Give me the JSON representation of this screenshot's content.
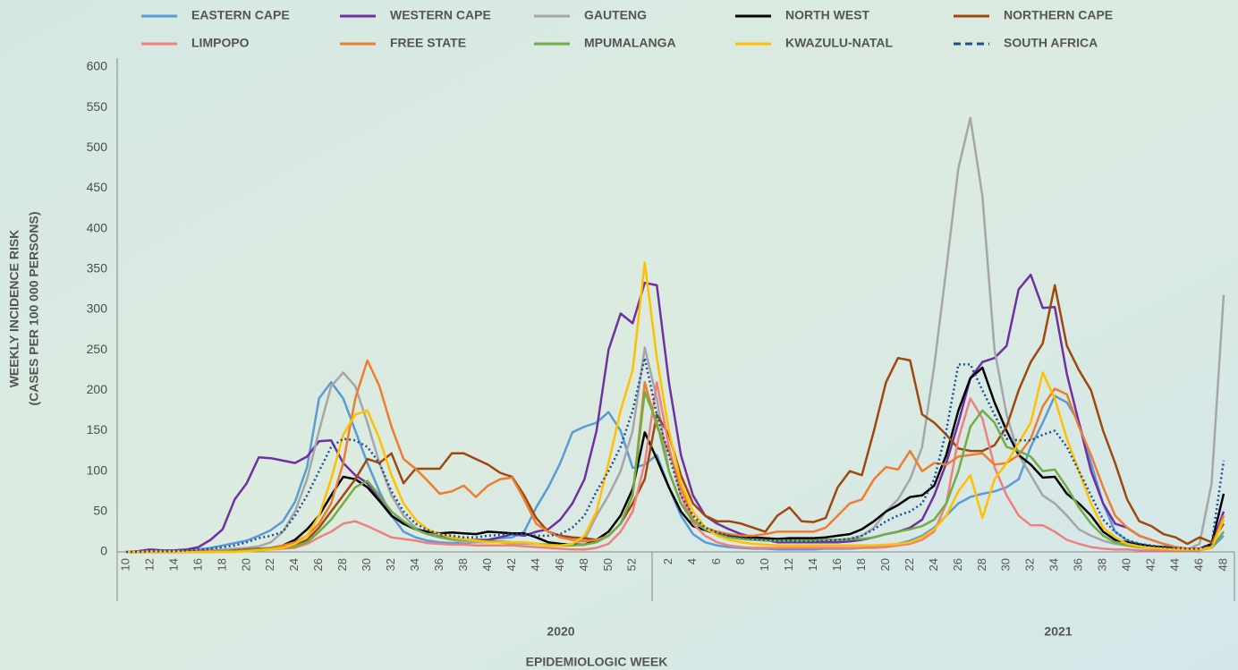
{
  "chart_data": {
    "type": "line",
    "y_label": [
      "WEEKLY INCIDENCE RISK",
      "(CASES PER 100 000 PERSONS)"
    ],
    "x_label": "EPIDEMIOLOGIC WEEK",
    "year_labels": [
      "2020",
      "2021"
    ],
    "categories": [
      "10",
      null,
      "12",
      null,
      "14",
      null,
      "16",
      null,
      "18",
      null,
      "20",
      null,
      "22",
      null,
      "24",
      null,
      "26",
      null,
      "28",
      null,
      "30",
      null,
      "32",
      null,
      "34",
      null,
      "36",
      null,
      "38",
      null,
      "40",
      null,
      "42",
      null,
      "44",
      null,
      "46",
      null,
      "48",
      null,
      "50",
      null,
      "52",
      null,
      null,
      "2",
      null,
      "4",
      null,
      "6",
      null,
      "8",
      null,
      "10",
      null,
      "12",
      null,
      "14",
      null,
      "16",
      null,
      "18",
      null,
      "20",
      null,
      "22",
      null,
      "24",
      null,
      "26",
      null,
      "28",
      null,
      "30",
      null,
      "32",
      null,
      "34",
      null,
      "36",
      null,
      "38",
      null,
      "40",
      null,
      "42",
      null,
      "44",
      null,
      "46",
      null,
      "48"
    ],
    "ylim": [
      0,
      600
    ],
    "yticks": [
      0,
      50,
      100,
      150,
      200,
      250,
      300,
      350,
      400,
      450,
      500,
      550,
      600
    ],
    "grid": false,
    "series": [
      {
        "name": "EASTERN CAPE",
        "color": "#5b9bd5",
        "values": [
          0,
          0,
          2,
          1,
          1,
          2,
          3,
          5,
          8,
          11,
          14,
          20,
          27,
          38,
          62,
          105,
          190,
          210,
          190,
          150,
          110,
          75,
          45,
          25,
          18,
          14,
          12,
          11,
          11,
          12,
          15,
          17,
          18,
          25,
          55,
          80,
          110,
          148,
          155,
          160,
          173,
          150,
          104,
          108,
          120,
          80,
          45,
          22,
          12,
          8,
          6,
          5,
          4,
          4,
          3,
          3,
          3,
          3,
          4,
          4,
          4,
          5,
          6,
          8,
          10,
          14,
          20,
          30,
          45,
          60,
          68,
          72,
          75,
          80,
          90,
          130,
          160,
          193,
          185,
          160,
          110,
          60,
          25,
          14,
          10,
          7,
          5,
          4,
          3,
          3,
          5,
          20
        ]
      },
      {
        "name": "WESTERN CAPE",
        "color": "#7030a0",
        "values": [
          0,
          1,
          3,
          2,
          2,
          3,
          6,
          15,
          28,
          65,
          85,
          117,
          116,
          113,
          110,
          118,
          137,
          138,
          110,
          95,
          85,
          65,
          45,
          35,
          28,
          22,
          19,
          18,
          15,
          15,
          15,
          18,
          22,
          20,
          25,
          28,
          40,
          60,
          90,
          150,
          250,
          295,
          283,
          333,
          330,
          210,
          120,
          70,
          45,
          35,
          28,
          22,
          18,
          15,
          12,
          12,
          12,
          12,
          12,
          12,
          13,
          15,
          18,
          22,
          25,
          30,
          40,
          70,
          110,
          160,
          215,
          235,
          240,
          255,
          325,
          343,
          302,
          303,
          220,
          160,
          100,
          60,
          35,
          30,
          20,
          15,
          10,
          6,
          4,
          3,
          8,
          50
        ]
      },
      {
        "name": "GAUTENG",
        "color": "#a6a6a6",
        "values": [
          0,
          0,
          1,
          1,
          1,
          1,
          2,
          2,
          3,
          4,
          5,
          7,
          12,
          25,
          50,
          90,
          150,
          205,
          222,
          205,
          160,
          110,
          70,
          45,
          30,
          22,
          18,
          15,
          12,
          12,
          12,
          12,
          10,
          10,
          10,
          9,
          8,
          10,
          15,
          45,
          70,
          100,
          150,
          253,
          190,
          100,
          60,
          40,
          30,
          25,
          20,
          18,
          16,
          15,
          15,
          15,
          15,
          15,
          15,
          15,
          16,
          20,
          30,
          50,
          65,
          90,
          130,
          230,
          350,
          475,
          537,
          440,
          250,
          170,
          120,
          95,
          70,
          60,
          45,
          28,
          20,
          14,
          10,
          8,
          6,
          5,
          4,
          3,
          3,
          10,
          85,
          318
        ]
      },
      {
        "name": "NORTH WEST",
        "color": "#000000",
        "values": [
          0,
          0,
          0,
          0,
          0,
          0,
          1,
          1,
          1,
          1,
          2,
          3,
          5,
          8,
          15,
          28,
          45,
          70,
          93,
          90,
          80,
          63,
          45,
          35,
          28,
          25,
          23,
          24,
          23,
          22,
          25,
          24,
          23,
          23,
          18,
          12,
          10,
          9,
          9,
          15,
          25,
          45,
          78,
          148,
          115,
          80,
          50,
          32,
          27,
          22,
          20,
          18,
          18,
          17,
          16,
          17,
          17,
          17,
          18,
          20,
          22,
          28,
          38,
          50,
          58,
          68,
          70,
          82,
          120,
          175,
          215,
          228,
          185,
          150,
          120,
          108,
          92,
          93,
          72,
          60,
          45,
          25,
          15,
          12,
          9,
          7,
          6,
          5,
          4,
          4,
          10,
          72
        ]
      },
      {
        "name": "NORTHERN CAPE",
        "color": "#9e480e",
        "values": [
          0,
          0,
          0,
          0,
          0,
          1,
          1,
          1,
          1,
          2,
          3,
          4,
          5,
          6,
          8,
          15,
          30,
          50,
          70,
          90,
          115,
          110,
          122,
          85,
          103,
          103,
          103,
          122,
          122,
          115,
          108,
          98,
          93,
          70,
          42,
          25,
          20,
          18,
          17,
          15,
          20,
          35,
          60,
          90,
          170,
          145,
          95,
          60,
          45,
          38,
          38,
          35,
          30,
          25,
          45,
          55,
          38,
          37,
          42,
          80,
          100,
          95,
          150,
          210,
          240,
          237,
          170,
          160,
          145,
          128,
          125,
          125,
          132,
          155,
          200,
          235,
          258,
          330,
          255,
          225,
          200,
          150,
          110,
          65,
          38,
          32,
          22,
          18,
          10,
          18,
          12,
          35
        ]
      },
      {
        "name": "LIMPOPO",
        "color": "#f08080",
        "values": [
          0,
          0,
          0,
          0,
          0,
          0,
          0,
          0,
          1,
          1,
          1,
          2,
          3,
          4,
          5,
          10,
          18,
          25,
          35,
          38,
          32,
          25,
          18,
          16,
          14,
          11,
          10,
          9,
          9,
          8,
          8,
          8,
          8,
          7,
          6,
          5,
          4,
          3,
          3,
          5,
          10,
          25,
          50,
          110,
          210,
          130,
          70,
          35,
          20,
          12,
          8,
          6,
          5,
          5,
          5,
          5,
          5,
          5,
          5,
          5,
          5,
          5,
          5,
          6,
          8,
          10,
          15,
          25,
          60,
          140,
          190,
          165,
          105,
          70,
          45,
          33,
          33,
          25,
          15,
          10,
          6,
          4,
          3,
          3,
          2,
          2,
          2,
          2,
          2,
          2,
          5,
          40
        ]
      },
      {
        "name": "FREE STATE",
        "color": "#ed7d31",
        "values": [
          0,
          0,
          0,
          0,
          0,
          0,
          0,
          1,
          1,
          1,
          2,
          3,
          5,
          8,
          12,
          20,
          35,
          60,
          110,
          190,
          237,
          205,
          155,
          115,
          103,
          88,
          72,
          75,
          82,
          68,
          82,
          90,
          92,
          65,
          35,
          25,
          18,
          15,
          13,
          15,
          20,
          35,
          70,
          210,
          155,
          125,
          80,
          40,
          30,
          25,
          22,
          20,
          20,
          22,
          25,
          25,
          25,
          25,
          30,
          45,
          60,
          65,
          90,
          105,
          102,
          125,
          100,
          110,
          108,
          118,
          120,
          122,
          108,
          110,
          120,
          140,
          180,
          202,
          195,
          155,
          120,
          80,
          45,
          30,
          20,
          15,
          10,
          6,
          4,
          4,
          6,
          45
        ]
      },
      {
        "name": "MPUMALANGA",
        "color": "#70ad47",
        "values": [
          0,
          0,
          0,
          0,
          0,
          0,
          0,
          0,
          1,
          1,
          2,
          3,
          4,
          5,
          7,
          12,
          25,
          40,
          60,
          80,
          88,
          70,
          50,
          38,
          28,
          22,
          18,
          16,
          15,
          14,
          13,
          13,
          12,
          12,
          10,
          9,
          8,
          8,
          9,
          12,
          20,
          35,
          70,
          198,
          160,
          100,
          60,
          38,
          28,
          22,
          18,
          16,
          15,
          14,
          14,
          14,
          14,
          14,
          15,
          15,
          16,
          16,
          18,
          22,
          25,
          28,
          32,
          40,
          60,
          100,
          155,
          175,
          160,
          130,
          125,
          118,
          100,
          102,
          80,
          55,
          35,
          20,
          12,
          8,
          6,
          5,
          4,
          3,
          3,
          3,
          5,
          25
        ]
      },
      {
        "name": "KWAZULU-NATAL",
        "color": "#ffc000",
        "values": [
          0,
          0,
          0,
          0,
          0,
          0,
          0,
          0,
          0,
          0,
          1,
          2,
          3,
          5,
          10,
          20,
          45,
          90,
          145,
          170,
          175,
          140,
          95,
          60,
          40,
          28,
          22,
          18,
          16,
          14,
          12,
          12,
          12,
          12,
          10,
          8,
          8,
          10,
          20,
          50,
          110,
          175,
          225,
          358,
          240,
          150,
          85,
          50,
          30,
          20,
          15,
          12,
          10,
          9,
          8,
          8,
          8,
          8,
          8,
          8,
          8,
          8,
          8,
          9,
          10,
          12,
          18,
          28,
          45,
          75,
          95,
          42,
          90,
          110,
          135,
          160,
          222,
          190,
          140,
          100,
          60,
          30,
          18,
          10,
          7,
          5,
          4,
          3,
          3,
          3,
          5,
          40
        ]
      },
      {
        "name": "SOUTH AFRICA",
        "color": "#1f4e96",
        "dash": "dotted",
        "values": [
          0,
          0,
          1,
          1,
          1,
          2,
          3,
          4,
          6,
          8,
          12,
          17,
          20,
          25,
          45,
          70,
          100,
          130,
          140,
          138,
          130,
          110,
          75,
          50,
          35,
          27,
          22,
          20,
          18,
          18,
          20,
          21,
          22,
          22,
          20,
          20,
          22,
          30,
          45,
          75,
          100,
          130,
          175,
          240,
          170,
          120,
          70,
          45,
          30,
          24,
          20,
          18,
          16,
          15,
          14,
          14,
          13,
          13,
          14,
          15,
          16,
          20,
          28,
          38,
          45,
          50,
          60,
          90,
          150,
          232,
          232,
          200,
          170,
          140,
          138,
          138,
          145,
          150,
          130,
          100,
          70,
          40,
          25,
          15,
          10,
          8,
          6,
          5,
          4,
          4,
          10,
          113
        ]
      }
    ]
  }
}
